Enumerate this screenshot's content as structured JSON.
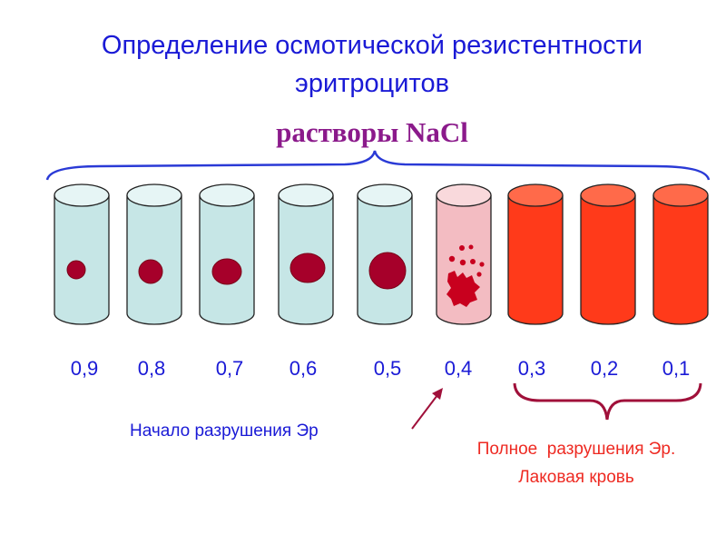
{
  "title_line1": "Определение осмотической резистентности",
  "title_line2": "эритроцитов",
  "subtitle": "растворы NaCl",
  "concentrations": [
    "0,9",
    "0,8",
    "0,7",
    "0,6",
    "0,5",
    "0,4",
    "0,3",
    "0,2",
    "0,1"
  ],
  "note_start": "Начало разрушения Эр",
  "note_full_line1": "Полное  разрушения Эр.",
  "note_full_line2": "Лаковая кровь",
  "colors": {
    "title": "#1a1ad6",
    "subtitle": "#8b1a8b",
    "tube_intact": "#c6e6e6",
    "tube_partial": "#f3bcc2",
    "tube_hemolyzed": "#ff3a1a",
    "cell": "#a6002a",
    "brace_blue": "#2a3ad6",
    "brace_red": "#a0103a",
    "note_full": "#ee2a22"
  }
}
